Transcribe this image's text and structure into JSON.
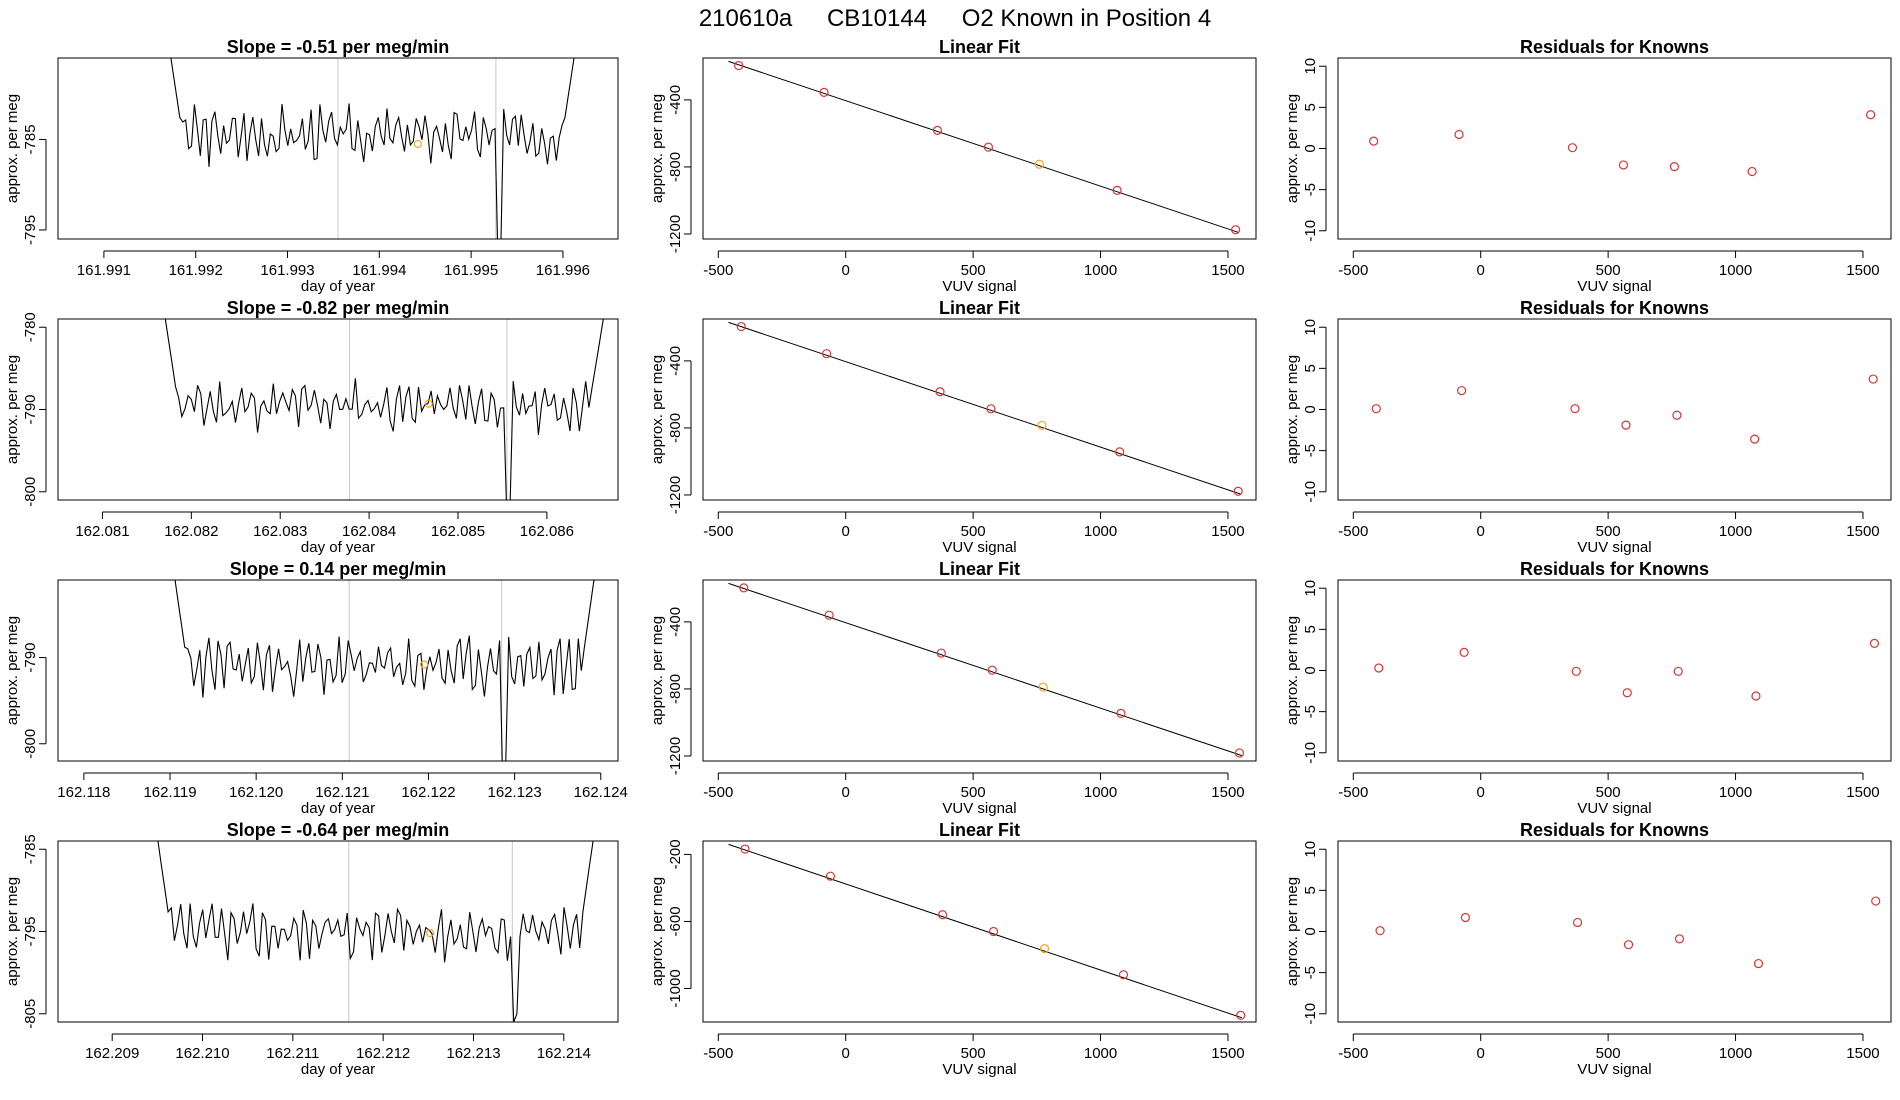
{
  "figure": {
    "run_id": "210610a",
    "cylinder": "CB10144",
    "description": "O2 Known in Position  4"
  },
  "colors": {
    "series_line": "#000000",
    "reference_line": "#c8c8c8",
    "known_point": "#dd3333",
    "highlight_point": "#f5a623",
    "fit_line": "#000000"
  },
  "chart_data": [
    {
      "type": "line",
      "row": 1,
      "col": 1,
      "title": "Slope =  -0.51  per meg/min",
      "xlabel": "day of year",
      "ylabel": "approx. per meg",
      "xlim": [
        161.9905,
        161.9966
      ],
      "ylim": [
        -796,
        -776
      ],
      "xticks": [
        161.991,
        161.992,
        161.993,
        161.994,
        161.995,
        161.996
      ],
      "xtick_decimals": 3,
      "yticks": [
        -795,
        -785
      ],
      "trace": {
        "x_start": 161.9917,
        "x_end": 161.99615,
        "level": -784.5,
        "amplitude": 2.6,
        "high_start": -774,
        "high_end": -774,
        "dip_x": 161.9953,
        "dip_y": -798,
        "seed": 3
      },
      "vlines": [
        161.99355,
        161.99527
      ],
      "highlight_point": {
        "x": 161.99442,
        "y": -785.5
      }
    },
    {
      "type": "scatter",
      "row": 1,
      "col": 2,
      "title": "Linear Fit",
      "xlabel": "VUV signal",
      "ylabel": "approx. per meg",
      "xlim": [
        -560,
        1610
      ],
      "ylim": [
        -1230,
        -150
      ],
      "xticks": [
        -500,
        0,
        500,
        1000,
        1500
      ],
      "yticks": [
        -1200,
        -800,
        -400
      ],
      "fit_line": {
        "x0": -460,
        "y0": -170,
        "x1": 1540,
        "y1": -1190
      },
      "points": [
        {
          "x": -420,
          "y": -195
        },
        {
          "x": -85,
          "y": -355
        },
        {
          "x": 360,
          "y": -582
        },
        {
          "x": 560,
          "y": -682
        },
        {
          "x": 760,
          "y": -784,
          "highlight": true
        },
        {
          "x": 1065,
          "y": -940
        },
        {
          "x": 1530,
          "y": -1175
        }
      ]
    },
    {
      "type": "scatter",
      "row": 1,
      "col": 3,
      "title": "Residuals for Knowns",
      "xlabel": "VUV signal",
      "ylabel": "approx. per meg",
      "xlim": [
        -560,
        1610
      ],
      "ylim": [
        -11,
        11
      ],
      "xticks": [
        -500,
        0,
        500,
        1000,
        1500
      ],
      "yticks": [
        -10,
        -5,
        0,
        5,
        10
      ],
      "points": [
        {
          "x": -420,
          "y": 0.9
        },
        {
          "x": -85,
          "y": 1.7
        },
        {
          "x": 360,
          "y": 0.1
        },
        {
          "x": 560,
          "y": -2.0
        },
        {
          "x": 760,
          "y": -2.2
        },
        {
          "x": 1065,
          "y": -2.8
        },
        {
          "x": 1530,
          "y": 4.1
        }
      ]
    },
    {
      "type": "line",
      "row": 2,
      "col": 1,
      "title": "Slope =  -0.82  per meg/min",
      "xlabel": "day of year",
      "ylabel": "approx. per meg",
      "xlim": [
        162.0805,
        162.0868
      ],
      "ylim": [
        -801,
        -779
      ],
      "xticks": [
        162.081,
        162.082,
        162.083,
        162.084,
        162.085,
        162.086
      ],
      "xtick_decimals": 3,
      "yticks": [
        -800,
        -790,
        -780
      ],
      "trace": {
        "x_start": 162.08168,
        "x_end": 162.08665,
        "level": -789.5,
        "amplitude": 2.6,
        "high_start": -777,
        "high_end": -778,
        "dip_x": 162.08555,
        "dip_y": -803,
        "seed": 11
      },
      "vlines": [
        162.08378,
        162.08555
      ],
      "highlight_point": {
        "x": 162.08467,
        "y": -789.3
      }
    },
    {
      "type": "scatter",
      "row": 2,
      "col": 2,
      "title": "Linear Fit",
      "xlabel": "VUV signal",
      "ylabel": "approx. per meg",
      "xlim": [
        -560,
        1610
      ],
      "ylim": [
        -1230,
        -150
      ],
      "xticks": [
        -500,
        0,
        500,
        1000,
        1500
      ],
      "yticks": [
        -1200,
        -800,
        -400
      ],
      "fit_line": {
        "x0": -460,
        "y0": -170,
        "x1": 1550,
        "y1": -1195
      },
      "points": [
        {
          "x": -410,
          "y": -195
        },
        {
          "x": -75,
          "y": -357
        },
        {
          "x": 370,
          "y": -584
        },
        {
          "x": 570,
          "y": -686
        },
        {
          "x": 770,
          "y": -785,
          "highlight": true
        },
        {
          "x": 1075,
          "y": -943
        },
        {
          "x": 1540,
          "y": -1178
        }
      ]
    },
    {
      "type": "scatter",
      "row": 2,
      "col": 3,
      "title": "Residuals for Knowns",
      "xlabel": "VUV signal",
      "ylabel": "approx. per meg",
      "xlim": [
        -560,
        1610
      ],
      "ylim": [
        -11,
        11
      ],
      "xticks": [
        -500,
        0,
        500,
        1000,
        1500
      ],
      "yticks": [
        -10,
        -5,
        0,
        5,
        10
      ],
      "points": [
        {
          "x": -410,
          "y": 0.1
        },
        {
          "x": -75,
          "y": 2.3
        },
        {
          "x": 370,
          "y": 0.1
        },
        {
          "x": 570,
          "y": -1.9
        },
        {
          "x": 770,
          "y": -0.7
        },
        {
          "x": 1075,
          "y": -3.6
        },
        {
          "x": 1540,
          "y": 3.7
        }
      ]
    },
    {
      "type": "line",
      "row": 3,
      "col": 1,
      "title": "Slope =  0.14  per meg/min",
      "xlabel": "day of year",
      "ylabel": "approx. per meg",
      "xlim": [
        162.1177,
        162.1242
      ],
      "ylim": [
        -802,
        -781
      ],
      "xticks": [
        162.118,
        162.119,
        162.12,
        162.121,
        162.122,
        162.123,
        162.124
      ],
      "xtick_decimals": 3,
      "yticks": [
        -800,
        -790
      ],
      "trace": {
        "x_start": 162.11903,
        "x_end": 162.12395,
        "level": -791,
        "amplitude": 2.8,
        "high_start": -779,
        "high_end": -779,
        "dip_x": 162.12285,
        "dip_y": -804,
        "seed": 23
      },
      "vlines": [
        162.12108,
        162.12285
      ],
      "highlight_point": {
        "x": 162.12195,
        "y": -790.8
      }
    },
    {
      "type": "scatter",
      "row": 3,
      "col": 2,
      "title": "Linear Fit",
      "xlabel": "VUV signal",
      "ylabel": "approx. per meg",
      "xlim": [
        -560,
        1610
      ],
      "ylim": [
        -1230,
        -150
      ],
      "xticks": [
        -500,
        0,
        500,
        1000,
        1500
      ],
      "yticks": [
        -1200,
        -800,
        -400
      ],
      "fit_line": {
        "x0": -460,
        "y0": -170,
        "x1": 1555,
        "y1": -1198
      },
      "points": [
        {
          "x": -400,
          "y": -197
        },
        {
          "x": -65,
          "y": -360
        },
        {
          "x": 375,
          "y": -586
        },
        {
          "x": 575,
          "y": -688
        },
        {
          "x": 775,
          "y": -789,
          "highlight": true
        },
        {
          "x": 1080,
          "y": -946
        },
        {
          "x": 1545,
          "y": -1182
        }
      ]
    },
    {
      "type": "scatter",
      "row": 3,
      "col": 3,
      "title": "Residuals for Knowns",
      "xlabel": "VUV signal",
      "ylabel": "approx. per meg",
      "xlim": [
        -560,
        1610
      ],
      "ylim": [
        -11,
        11
      ],
      "xticks": [
        -500,
        0,
        500,
        1000,
        1500
      ],
      "yticks": [
        -10,
        -5,
        0,
        5,
        10
      ],
      "points": [
        {
          "x": -400,
          "y": 0.3
        },
        {
          "x": -65,
          "y": 2.2
        },
        {
          "x": 375,
          "y": -0.1
        },
        {
          "x": 575,
          "y": -2.7
        },
        {
          "x": 775,
          "y": -0.1
        },
        {
          "x": 1080,
          "y": -3.1
        },
        {
          "x": 1545,
          "y": 3.3
        }
      ]
    },
    {
      "type": "line",
      "row": 4,
      "col": 1,
      "title": "Slope =  -0.64  per meg/min",
      "xlabel": "day of year",
      "ylabel": "approx. per meg",
      "xlim": [
        162.2084,
        162.2146
      ],
      "ylim": [
        -806,
        -784
      ],
      "xticks": [
        162.209,
        162.21,
        162.211,
        162.212,
        162.213,
        162.214
      ],
      "xtick_decimals": 3,
      "yticks": [
        -805,
        -795,
        -785
      ],
      "trace": {
        "x_start": 162.20948,
        "x_end": 162.21435,
        "level": -795,
        "amplitude": 2.8,
        "high_start": -782,
        "high_end": -782,
        "dip_x": 162.21343,
        "dip_y": -806,
        "seed": 37
      },
      "vlines": [
        162.21162,
        162.21343
      ],
      "highlight_point": {
        "x": 162.21252,
        "y": -795.2
      }
    },
    {
      "type": "scatter",
      "row": 4,
      "col": 2,
      "title": "Linear Fit",
      "xlabel": "VUV signal",
      "ylabel": "approx. per meg",
      "xlim": [
        -560,
        1610
      ],
      "ylim": [
        -1200,
        -120
      ],
      "xticks": [
        -500,
        0,
        500,
        1000,
        1500
      ],
      "yticks": [
        -1000,
        -600,
        -200
      ],
      "fit_line": {
        "x0": -460,
        "y0": -140,
        "x1": 1555,
        "y1": -1175
      },
      "points": [
        {
          "x": -395,
          "y": -168
        },
        {
          "x": -60,
          "y": -330
        },
        {
          "x": 380,
          "y": -560
        },
        {
          "x": 580,
          "y": -660
        },
        {
          "x": 780,
          "y": -762,
          "highlight": true
        },
        {
          "x": 1090,
          "y": -918
        },
        {
          "x": 1550,
          "y": -1160
        }
      ]
    },
    {
      "type": "scatter",
      "row": 4,
      "col": 3,
      "title": "Residuals for Knowns",
      "xlabel": "VUV signal",
      "ylabel": "approx. per meg",
      "xlim": [
        -560,
        1610
      ],
      "ylim": [
        -11,
        11
      ],
      "xticks": [
        -500,
        0,
        500,
        1000,
        1500
      ],
      "yticks": [
        -10,
        -5,
        0,
        5,
        10
      ],
      "points": [
        {
          "x": -395,
          "y": 0.1
        },
        {
          "x": -60,
          "y": 1.7
        },
        {
          "x": 380,
          "y": 1.1
        },
        {
          "x": 580,
          "y": -1.6
        },
        {
          "x": 780,
          "y": -0.9
        },
        {
          "x": 1090,
          "y": -3.9
        },
        {
          "x": 1550,
          "y": 3.7
        }
      ]
    }
  ]
}
